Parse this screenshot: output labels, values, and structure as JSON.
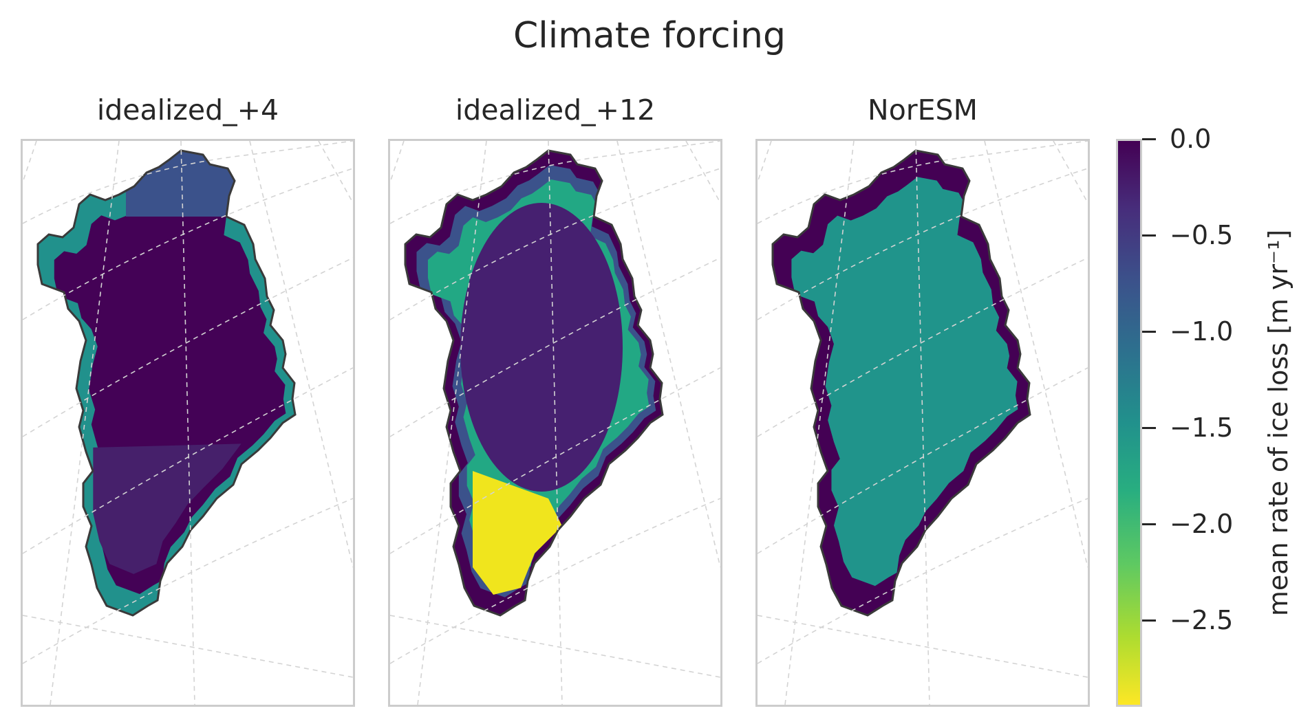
{
  "chart_data": {
    "type": "heatmap",
    "title": "Climate forcing",
    "panels": [
      {
        "title": "idealized_+4",
        "colors": {
          "interior": "#440256",
          "south": "#46206b",
          "margin": "#21918c",
          "edge": "#3b528b"
        }
      },
      {
        "title": "idealized_+12",
        "colors": {
          "interior": "#462070",
          "south": "#f0e51d",
          "margin": "#22a884",
          "edge": "#3b528b",
          "rim": "#440154"
        }
      },
      {
        "title": "NorESM",
        "colors": {
          "interior": "#20948b",
          "margin": "#440154"
        }
      }
    ],
    "colorbar": {
      "label": "mean rate of ice loss [m yr⁻¹]",
      "colormap": "viridis_r",
      "range": [
        -2.95,
        0.0
      ],
      "ticks": [
        "0.0",
        "−0.5",
        "−1.0",
        "−1.5",
        "−2.0",
        "−2.5"
      ],
      "tick_values": [
        0.0,
        -0.5,
        -1.0,
        -1.5,
        -2.0,
        -2.5
      ]
    },
    "grid": true
  }
}
